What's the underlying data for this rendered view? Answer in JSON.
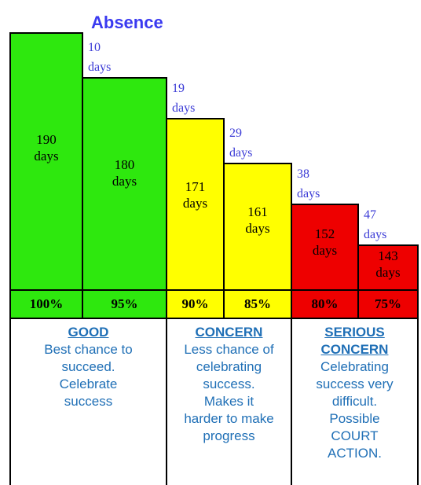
{
  "chart_data": {
    "type": "bar",
    "categories": [
      "100%",
      "95%",
      "90%",
      "85%",
      "80%",
      "75%"
    ],
    "values": [
      190,
      180,
      171,
      161,
      152,
      143
    ],
    "value_labels": [
      "190 days",
      "180 days",
      "171 days",
      "161 days",
      "152 days",
      "143 days"
    ],
    "colors": [
      "#2ee80e",
      "#2ee80e",
      "#ffff00",
      "#ffff00",
      "#ee0000",
      "#ee0000"
    ],
    "ylim": [
      133,
      195
    ],
    "absence_title": "Absence",
    "absence_labels": [
      "10 days",
      "19 days",
      "29 days",
      "38 days",
      "47 days"
    ]
  },
  "sections": [
    {
      "heading": "GOOD",
      "lines": [
        "Best chance to",
        "succeed.",
        "Celebrate",
        "success"
      ]
    },
    {
      "heading": "CONCERN",
      "lines": [
        "Less chance of",
        "celebrating",
        "success.",
        "Makes it",
        "harder to make",
        "progress"
      ]
    },
    {
      "heading": "SERIOUS CONCERN",
      "lines": [
        "Celebrating",
        "success very",
        "difficult.",
        "Possible",
        "COURT",
        "ACTION."
      ]
    }
  ]
}
